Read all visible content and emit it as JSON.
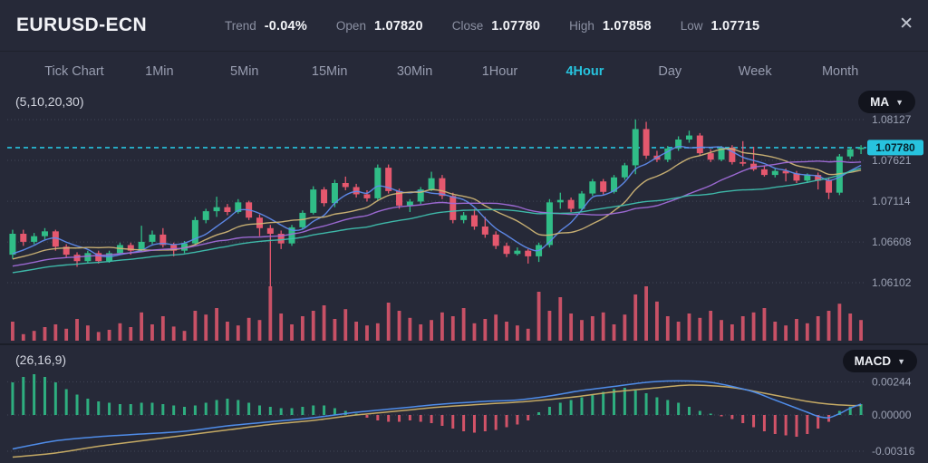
{
  "header": {
    "symbol": "EURUSD-ECN",
    "stats": [
      {
        "label": "Trend",
        "value": "-0.04%"
      },
      {
        "label": "Open",
        "value": "1.07820"
      },
      {
        "label": "Close",
        "value": "1.07780"
      },
      {
        "label": "High",
        "value": "1.07858"
      },
      {
        "label": "Low",
        "value": "1.07715"
      }
    ]
  },
  "icons": {
    "close": "✕",
    "chevron_down": "▼"
  },
  "tabs": {
    "items": [
      {
        "label": "Tick Chart"
      },
      {
        "label": "1Min"
      },
      {
        "label": "5Min"
      },
      {
        "label": "15Min"
      },
      {
        "label": "30Min"
      },
      {
        "label": "1Hour"
      },
      {
        "label": "4Hour"
      },
      {
        "label": "Day"
      },
      {
        "label": "Week"
      },
      {
        "label": "Month"
      }
    ],
    "active": "4Hour"
  },
  "indicators": {
    "ma": {
      "params_label": "(5,10,20,30)",
      "button_label": "MA"
    },
    "macd": {
      "params_label": "(26,16,9)",
      "button_label": "MACD"
    }
  },
  "colors": {
    "background": "#262938",
    "accent": "#27c3de",
    "up": "#30bd87",
    "down": "#e5586e",
    "grid": "#5a5f72",
    "axis_text": "#9ba1b3",
    "badge_text": "#07222c",
    "ma_lines": [
      "#5f8bec",
      "#cdb475",
      "#a06bd8",
      "#3fbfae"
    ],
    "macd_line": "#4f8ce8",
    "macd_signal": "#c4a964"
  },
  "chart_data": [
    {
      "type": "candlestick",
      "symbol": "EURUSD-ECN",
      "timeframe": "4Hour",
      "ma_periods": [
        5,
        10,
        20,
        30
      ],
      "ylim": [
        1.06035,
        1.08195
      ],
      "y_axis_labels": [
        {
          "value": 1.08127,
          "label": "1.08127"
        },
        {
          "value": 1.07621,
          "label": "1.07621"
        },
        {
          "value": 1.07114,
          "label": "1.07114"
        },
        {
          "value": 1.06608,
          "label": "1.06608"
        },
        {
          "value": 1.06102,
          "label": "1.06102"
        }
      ],
      "price_line": {
        "value": 1.0778,
        "label": "1.07780"
      },
      "ma_history_closes": [
        1.0598,
        1.06,
        1.0601,
        1.0603,
        1.0604,
        1.0606,
        1.0607,
        1.0609,
        1.061,
        1.0612,
        1.0613,
        1.0615,
        1.0616,
        1.0618,
        1.062,
        1.0621,
        1.0623,
        1.0624,
        1.0626,
        1.0627,
        1.0629,
        1.063,
        1.0632,
        1.0633,
        1.0635,
        1.0636,
        1.0638,
        1.0639,
        1.0641,
        1.0642
      ],
      "candles": [
        [
          1.0645,
          1.0676,
          1.064,
          1.0671
        ],
        [
          1.0671,
          1.0676,
          1.0656,
          1.0661
        ],
        [
          1.0661,
          1.0672,
          1.0658,
          1.0668
        ],
        [
          1.0668,
          1.0678,
          1.0664,
          1.0674
        ],
        [
          1.0674,
          1.0676,
          1.065,
          1.0655
        ],
        [
          1.0655,
          1.0658,
          1.0642,
          1.0645
        ],
        [
          1.0645,
          1.0648,
          1.063,
          1.0637
        ],
        [
          1.0637,
          1.065,
          1.0634,
          1.0647
        ],
        [
          1.0647,
          1.065,
          1.0634,
          1.0637
        ],
        [
          1.0637,
          1.065,
          1.0635,
          1.0647
        ],
        [
          1.0647,
          1.066,
          1.0645,
          1.0657
        ],
        [
          1.0657,
          1.066,
          1.0645,
          1.065
        ],
        [
          1.065,
          1.0681,
          1.0648,
          1.0661
        ],
        [
          1.0661,
          1.0675,
          1.0658,
          1.067
        ],
        [
          1.067,
          1.0678,
          1.0654,
          1.0657
        ],
        [
          1.0657,
          1.066,
          1.0643,
          1.065
        ],
        [
          1.065,
          1.0662,
          1.0647,
          1.0659
        ],
        [
          1.0659,
          1.0692,
          1.0657,
          1.0688
        ],
        [
          1.0688,
          1.0702,
          1.0684,
          1.0699
        ],
        [
          1.0699,
          1.0717,
          1.0692,
          1.0704
        ],
        [
          1.0704,
          1.0708,
          1.0694,
          1.0698
        ],
        [
          1.0698,
          1.0714,
          1.0696,
          1.071
        ],
        [
          1.071,
          1.0712,
          1.0688,
          1.0691
        ],
        [
          1.0691,
          1.0695,
          1.0668,
          1.0678
        ],
        [
          1.0678,
          1.0682,
          1.0605,
          1.0671
        ],
        [
          1.0671,
          1.0675,
          1.0652,
          1.0659
        ],
        [
          1.0659,
          1.0682,
          1.0656,
          1.0679
        ],
        [
          1.0679,
          1.07,
          1.0676,
          1.0697
        ],
        [
          1.0697,
          1.073,
          1.0695,
          1.0726
        ],
        [
          1.0726,
          1.0729,
          1.0705,
          1.0709
        ],
        [
          1.0709,
          1.0738,
          1.0704,
          1.0734
        ],
        [
          1.0734,
          1.0742,
          1.0725,
          1.0729
        ],
        [
          1.0729,
          1.0733,
          1.0716,
          1.072
        ],
        [
          1.072,
          1.0725,
          1.0711,
          1.0715
        ],
        [
          1.0715,
          1.0757,
          1.0712,
          1.0753
        ],
        [
          1.0753,
          1.0757,
          1.0721,
          1.0724
        ],
        [
          1.0724,
          1.0727,
          1.0702,
          1.0706
        ],
        [
          1.0706,
          1.0714,
          1.0698,
          1.0711
        ],
        [
          1.0711,
          1.0729,
          1.0708,
          1.0726
        ],
        [
          1.0726,
          1.0748,
          1.0724,
          1.074
        ],
        [
          1.074,
          1.0744,
          1.0714,
          1.0718
        ],
        [
          1.0718,
          1.0722,
          1.0684,
          1.0688
        ],
        [
          1.0688,
          1.0698,
          1.0684,
          1.0694
        ],
        [
          1.0694,
          1.0702,
          1.0676,
          1.068
        ],
        [
          1.068,
          1.0692,
          1.0666,
          1.067
        ],
        [
          1.067,
          1.0674,
          1.0652,
          1.0656
        ],
        [
          1.0656,
          1.066,
          1.0642,
          1.0646
        ],
        [
          1.0646,
          1.0654,
          1.0644,
          1.065
        ],
        [
          1.065,
          1.0652,
          1.0634,
          1.0643
        ],
        [
          1.0643,
          1.066,
          1.0636,
          1.0657
        ],
        [
          1.0657,
          1.0714,
          1.0654,
          1.071
        ],
        [
          1.071,
          1.0722,
          1.0702,
          1.0713
        ],
        [
          1.0713,
          1.0716,
          1.0698,
          1.0702
        ],
        [
          1.0702,
          1.0724,
          1.07,
          1.0721
        ],
        [
          1.0721,
          1.0739,
          1.0718,
          1.0736
        ],
        [
          1.0736,
          1.0739,
          1.072,
          1.0723
        ],
        [
          1.0723,
          1.0744,
          1.0721,
          1.0741
        ],
        [
          1.0741,
          1.0759,
          1.0738,
          1.0756
        ],
        [
          1.0756,
          1.0813,
          1.0745,
          1.0801
        ],
        [
          1.0801,
          1.081,
          1.0764,
          1.0768
        ],
        [
          1.0768,
          1.0774,
          1.076,
          1.0763
        ],
        [
          1.0763,
          1.078,
          1.076,
          1.0777
        ],
        [
          1.0777,
          1.0792,
          1.0774,
          1.0788
        ],
        [
          1.0788,
          1.0799,
          1.0784,
          1.0793
        ],
        [
          1.0793,
          1.0796,
          1.0768,
          1.0771
        ],
        [
          1.0771,
          1.0776,
          1.076,
          1.0763
        ],
        [
          1.0763,
          1.078,
          1.0761,
          1.0778
        ],
        [
          1.0778,
          1.0781,
          1.0757,
          1.076
        ],
        [
          1.076,
          1.0786,
          1.0755,
          1.0758
        ],
        [
          1.0758,
          1.0779,
          1.0749,
          1.0751
        ],
        [
          1.0751,
          1.0755,
          1.0742,
          1.0744
        ],
        [
          1.0744,
          1.0752,
          1.0741,
          1.0749
        ],
        [
          1.0749,
          1.0752,
          1.0736,
          1.0746
        ],
        [
          1.0746,
          1.0749,
          1.0734,
          1.0737
        ],
        [
          1.0737,
          1.0746,
          1.0734,
          1.0744
        ],
        [
          1.0744,
          1.0747,
          1.0726,
          1.0737
        ],
        [
          1.0737,
          1.0741,
          1.0714,
          1.0722
        ],
        [
          1.0722,
          1.077,
          1.0719,
          1.0767
        ],
        [
          1.0767,
          1.0779,
          1.0764,
          1.0776
        ],
        [
          1.0776,
          1.0781,
          1.077,
          1.0778
        ]
      ],
      "volume": [
        0.35,
        0.12,
        0.18,
        0.25,
        0.3,
        0.22,
        0.4,
        0.28,
        0.16,
        0.2,
        0.32,
        0.25,
        0.52,
        0.3,
        0.45,
        0.26,
        0.18,
        0.55,
        0.48,
        0.6,
        0.35,
        0.28,
        0.42,
        0.38,
        1.0,
        0.5,
        0.3,
        0.45,
        0.55,
        0.65,
        0.4,
        0.58,
        0.35,
        0.28,
        0.32,
        0.7,
        0.55,
        0.42,
        0.3,
        0.38,
        0.52,
        0.45,
        0.6,
        0.32,
        0.4,
        0.48,
        0.35,
        0.28,
        0.22,
        0.9,
        0.55,
        0.8,
        0.5,
        0.38,
        0.45,
        0.52,
        0.3,
        0.48,
        0.85,
        1.0,
        0.72,
        0.45,
        0.35,
        0.5,
        0.42,
        0.55,
        0.38,
        0.3,
        0.45,
        0.52,
        0.6,
        0.35,
        0.28,
        0.4,
        0.32,
        0.45,
        0.55,
        0.68,
        0.5,
        0.38
      ]
    },
    {
      "type": "macd",
      "params": [
        26,
        16,
        9
      ],
      "y_axis_labels": [
        {
          "value": 0.00244,
          "label": "0.00244"
        },
        {
          "value": 0.0,
          "label": "0.00000"
        },
        {
          "value": -0.00316,
          "label": "-0.00316"
        }
      ],
      "histogram": [
        0.0024,
        0.0028,
        0.003,
        0.0028,
        0.0024,
        0.0019,
        0.0015,
        0.0012,
        0.001,
        0.0009,
        0.0008,
        0.0008,
        0.0009,
        0.0009,
        0.0008,
        0.0007,
        0.0006,
        0.0007,
        0.0009,
        0.0011,
        0.0012,
        0.0011,
        0.0009,
        0.0007,
        0.0006,
        0.0005,
        0.0005,
        0.0006,
        0.0007,
        0.0007,
        0.0005,
        0.0003,
        0.0001,
        -0.0002,
        -0.0004,
        -0.0005,
        -0.0005,
        -0.0004,
        -0.0005,
        -0.0006,
        -0.0008,
        -0.001,
        -0.0012,
        -0.0013,
        -0.0012,
        -0.0011,
        -0.0009,
        -0.0007,
        -0.0004,
        0.0002,
        0.0006,
        0.0009,
        0.0011,
        0.0013,
        0.0015,
        0.0017,
        0.0019,
        0.002,
        0.0018,
        0.0016,
        0.0013,
        0.0011,
        0.0009,
        0.0006,
        0.0003,
        0.0001,
        -0.0001,
        -0.0003,
        -0.0006,
        -0.0009,
        -0.0012,
        -0.0014,
        -0.0015,
        -0.0016,
        -0.0014,
        -0.001,
        -0.0005,
        0.0003,
        0.0006,
        0.0008
      ],
      "macd_line_points": [
        [
          0,
          -0.0025
        ],
        [
          4,
          -0.0019
        ],
        [
          8,
          -0.0016
        ],
        [
          12,
          -0.0014
        ],
        [
          16,
          -0.0012
        ],
        [
          20,
          -0.0008
        ],
        [
          24,
          -0.0005
        ],
        [
          28,
          -0.0002
        ],
        [
          32,
          0.0002
        ],
        [
          36,
          0.0005
        ],
        [
          40,
          0.0008
        ],
        [
          44,
          0.001
        ],
        [
          47,
          0.0011
        ],
        [
          50,
          0.0014
        ],
        [
          53,
          0.0018
        ],
        [
          56,
          0.0021
        ],
        [
          59,
          0.0024
        ],
        [
          61,
          0.0025
        ],
        [
          63,
          0.0025
        ],
        [
          65,
          0.0024
        ],
        [
          67,
          0.0021
        ],
        [
          69,
          0.0017
        ],
        [
          71,
          0.0011
        ],
        [
          73,
          0.0005
        ],
        [
          74,
          0.0002
        ],
        [
          75,
          -0.0001
        ],
        [
          76,
          -0.0002
        ],
        [
          77,
          0.0001
        ],
        [
          78,
          0.0005
        ],
        [
          79,
          0.0008
        ]
      ],
      "signal_line_points": [
        [
          0,
          -0.0031
        ],
        [
          4,
          -0.0028
        ],
        [
          8,
          -0.0023
        ],
        [
          12,
          -0.0019
        ],
        [
          16,
          -0.0015
        ],
        [
          20,
          -0.0011
        ],
        [
          24,
          -0.0007
        ],
        [
          28,
          -0.0004
        ],
        [
          32,
          0.0
        ],
        [
          36,
          0.0003
        ],
        [
          40,
          0.0006
        ],
        [
          44,
          0.0008
        ],
        [
          48,
          0.001
        ],
        [
          52,
          0.0013
        ],
        [
          56,
          0.0017
        ],
        [
          60,
          0.002
        ],
        [
          63,
          0.0022
        ],
        [
          66,
          0.0021
        ],
        [
          68,
          0.0019
        ],
        [
          70,
          0.0016
        ],
        [
          72,
          0.0013
        ],
        [
          74,
          0.001
        ],
        [
          76,
          0.0008
        ],
        [
          78,
          0.0007
        ],
        [
          79,
          0.0007
        ]
      ]
    }
  ]
}
